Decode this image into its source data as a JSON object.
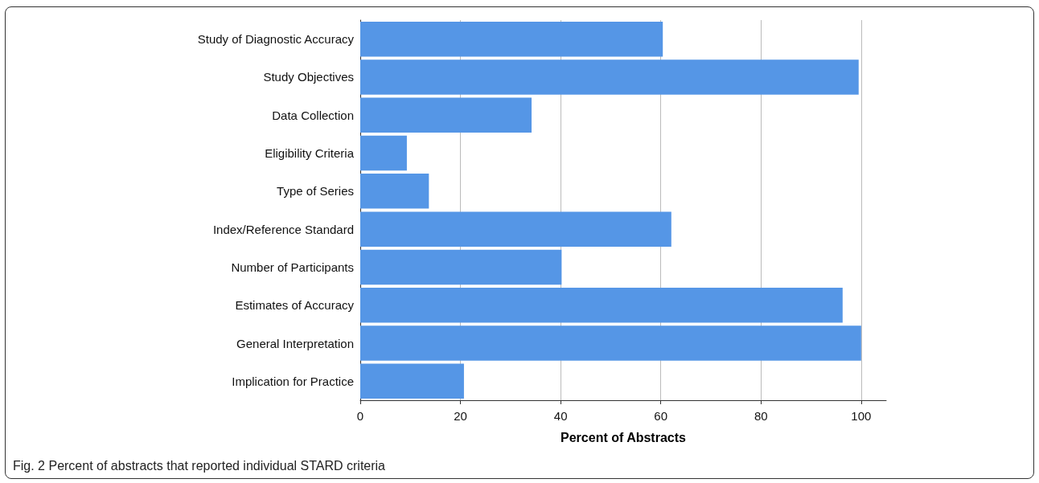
{
  "chart_data": {
    "type": "bar",
    "orientation": "horizontal",
    "xlabel": "Percent of Abstracts",
    "categories": [
      "Study of Diagnostic Accuracy",
      "Study Objectives",
      "Data Collection",
      "Eligibility Criteria",
      "Type of Series",
      "Index/Reference Standard",
      "Number of Participants",
      "Estimates of Accuracy",
      "General Interpretation",
      "Implication for Practice"
    ],
    "values": [
      60.4,
      99.5,
      34.2,
      9.3,
      13.7,
      62.1,
      40.2,
      96.3,
      100,
      20.7
    ],
    "color": "#5596e6",
    "xlim": [
      0,
      105
    ],
    "xticks": [
      0,
      20,
      40,
      60,
      80,
      100
    ],
    "grid": "x",
    "annotations": [
      "Fig. 2 Percent of abstracts that reported individual STARD criteria"
    ]
  }
}
